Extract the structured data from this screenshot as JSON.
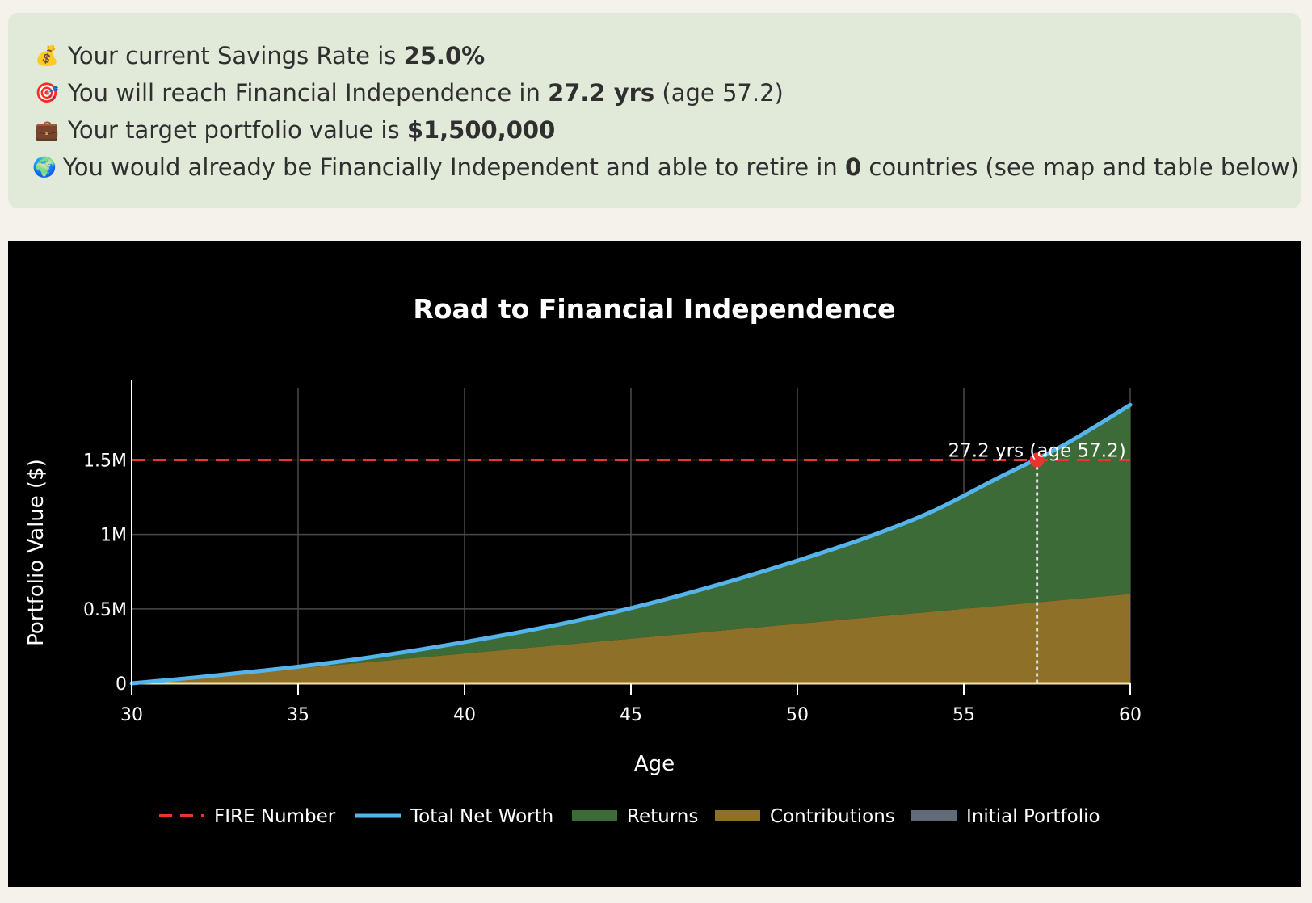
{
  "summary": {
    "line1": {
      "icon": "money-bag-icon",
      "glyph": "💰",
      "prefix": "Your current Savings Rate is ",
      "bold": "25.0%",
      "suffix": ""
    },
    "line2": {
      "icon": "target-icon",
      "glyph": "🎯",
      "prefix": "You will reach Financial Independence in ",
      "bold": "27.2 yrs",
      "suffix": " (age 57.2)"
    },
    "line3": {
      "icon": "briefcase-icon",
      "glyph": "💼",
      "prefix": "Your target portfolio value is ",
      "bold": "$1,500,000",
      "suffix": ""
    },
    "line4": {
      "icon": "globe-icon",
      "glyph": "🌍",
      "prefix": "You would already be Financially Independent and able to retire in ",
      "bold": "0",
      "suffix": " countries (see map and table below)"
    }
  },
  "colors": {
    "fire": "#e8352f",
    "networth": "#55b4ec",
    "returns": "#3c6b38",
    "contributions": "#8f7028",
    "initial": "#5f6b77",
    "grid": "#4a4a4a",
    "baseline": "#f3e4a6"
  },
  "chart_data": {
    "type": "area",
    "title": "Road to Financial Independence",
    "xlabel": "Age",
    "ylabel": "Portfolio Value ($)",
    "xlim": [
      30,
      60
    ],
    "ylim": [
      0,
      1980000
    ],
    "grid": true,
    "legend_position": "bottom",
    "x_ticks": [
      30,
      35,
      40,
      45,
      50,
      55,
      60
    ],
    "y_ticks": [
      0,
      500000,
      1000000,
      1500000
    ],
    "y_tick_labels": [
      "0",
      "0.5M",
      "1M",
      "1.5M"
    ],
    "x": [
      30,
      32,
      34,
      36,
      38,
      40,
      42,
      44,
      46,
      48,
      50,
      52,
      54,
      56,
      58,
      60
    ],
    "series": [
      {
        "name": "Initial Portfolio",
        "values": [
          0,
          0,
          0,
          0,
          0,
          0,
          0,
          0,
          0,
          0,
          0,
          0,
          0,
          0,
          0,
          0
        ]
      },
      {
        "name": "Contributions",
        "values": [
          0,
          40000,
          80000,
          120000,
          160000,
          200000,
          240000,
          280000,
          320000,
          360000,
          400000,
          440000,
          480000,
          520000,
          560000,
          600000
        ]
      },
      {
        "name": "Total Net Worth",
        "values": [
          0,
          41000,
          87000,
          139000,
          203000,
          277000,
          358000,
          452000,
          562000,
          687000,
          824000,
          973000,
          1149000,
          1376000,
          1600000,
          1870000
        ]
      }
    ],
    "fire_number": {
      "name": "FIRE Number",
      "value": 1500000
    },
    "fi_point": {
      "x": 57.2,
      "y": 1500000,
      "label": "27.2 yrs (age 57.2)"
    },
    "legend": [
      "FIRE Number",
      "Total Net Worth",
      "Returns",
      "Contributions",
      "Initial Portfolio"
    ]
  }
}
